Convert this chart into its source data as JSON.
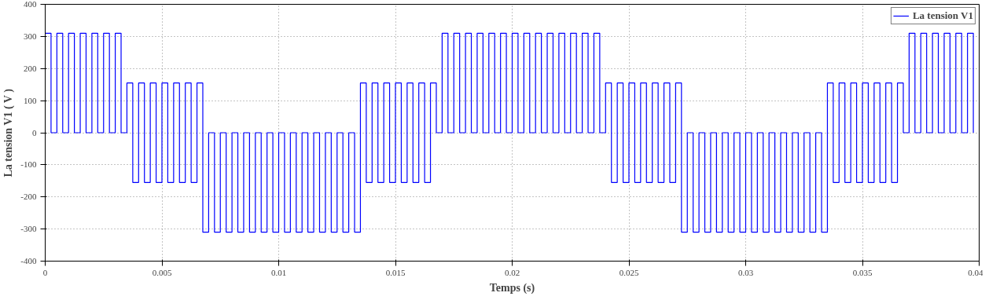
{
  "chart_data": {
    "type": "step",
    "xlabel": "Temps (s)",
    "ylabel": "La tension V1 ( V )",
    "x": [
      0,
      0.00025,
      0.0005,
      0.00075,
      0.001,
      0.00125,
      0.0015,
      0.00175,
      0.002,
      0.00225,
      0.0025,
      0.00275,
      0.003,
      0.00325,
      0.0035,
      0.00375,
      0.004,
      0.00425,
      0.0045,
      0.00475,
      0.005,
      0.00525,
      0.0055,
      0.00575,
      0.006,
      0.00625,
      0.0065,
      0.00675,
      0.007,
      0.00725,
      0.0075,
      0.00775,
      0.008,
      0.00825,
      0.0085,
      0.00875,
      0.009,
      0.00925,
      0.0095,
      0.00975,
      0.01,
      0.01025,
      0.0105,
      0.01075,
      0.011,
      0.01125,
      0.0115,
      0.01175,
      0.012,
      0.01225,
      0.0125,
      0.01275,
      0.013,
      0.01325,
      0.0135,
      0.01375,
      0.014,
      0.01425,
      0.0145,
      0.01475,
      0.015,
      0.01525,
      0.0155,
      0.01575,
      0.016,
      0.01625,
      0.0165,
      0.01675,
      0.017,
      0.01725,
      0.0175,
      0.01775,
      0.018,
      0.01825,
      0.0185,
      0.01875,
      0.019,
      0.01925,
      0.0195,
      0.01975,
      0.02,
      0.02025,
      0.0205,
      0.02075,
      0.021,
      0.02125,
      0.0215,
      0.02175,
      0.022,
      0.02225,
      0.0225,
      0.02275,
      0.023,
      0.02325,
      0.0235,
      0.02375,
      0.024,
      0.02425,
      0.0245,
      0.02475,
      0.025,
      0.02525,
      0.0255,
      0.02575,
      0.026,
      0.02625,
      0.0265,
      0.02675,
      0.027,
      0.02725,
      0.0275,
      0.02775,
      0.028,
      0.02825,
      0.0285,
      0.02875,
      0.029,
      0.02925,
      0.0295,
      0.02975,
      0.03,
      0.03025,
      0.0305,
      0.03075,
      0.031,
      0.03125,
      0.0315,
      0.03175,
      0.032,
      0.03225,
      0.0325,
      0.03275,
      0.033,
      0.03325,
      0.0335,
      0.03375,
      0.034,
      0.03425,
      0.0345,
      0.03475,
      0.035,
      0.03525,
      0.0355,
      0.03575,
      0.036,
      0.03625,
      0.0365,
      0.03675,
      0.037,
      0.03725,
      0.0375,
      0.03775,
      0.038,
      0.03825,
      0.0385,
      0.03875,
      0.039,
      0.03925,
      0.0395,
      0.03975
    ],
    "series": [
      {
        "name": "La tension V1",
        "color": "#0000ff",
        "values": [
          310,
          0,
          310,
          0,
          310,
          0,
          310,
          0,
          310,
          0,
          310,
          0,
          310,
          0,
          155,
          -155,
          155,
          -155,
          155,
          -155,
          155,
          -155,
          155,
          -155,
          155,
          -155,
          155,
          -310,
          0,
          -310,
          0,
          -310,
          0,
          -310,
          0,
          -310,
          0,
          -310,
          0,
          -310,
          0,
          -310,
          0,
          -310,
          0,
          -310,
          0,
          -310,
          0,
          -310,
          0,
          -310,
          0,
          -310,
          155,
          -155,
          155,
          -155,
          155,
          -155,
          155,
          -155,
          155,
          -155,
          155,
          -155,
          155,
          0,
          310,
          0,
          310,
          0,
          310,
          0,
          310,
          0,
          310,
          0,
          310,
          0,
          310,
          0,
          310,
          0,
          310,
          0,
          310,
          0,
          310,
          0,
          310,
          0,
          310,
          0,
          310,
          0,
          155,
          -155,
          155,
          -155,
          155,
          -155,
          155,
          -155,
          155,
          -155,
          155,
          -155,
          155,
          -310,
          0,
          -310,
          0,
          -310,
          0,
          -310,
          0,
          -310,
          0,
          -310,
          0,
          -310,
          0,
          -310,
          0,
          -310,
          0,
          -310,
          0,
          -310,
          0,
          -310,
          0,
          -310,
          155,
          -155,
          155,
          -155,
          155,
          -155,
          155,
          -155,
          155,
          -155,
          155,
          -155,
          155,
          0,
          310,
          0,
          310,
          0,
          310,
          0,
          310,
          0,
          310,
          0,
          310,
          0
        ]
      }
    ],
    "xlim": [
      0,
      0.04
    ],
    "xticks": [
      0,
      0.005,
      0.01,
      0.015,
      0.02,
      0.025,
      0.03,
      0.035,
      0.04
    ],
    "ylim": [
      -400,
      400
    ],
    "yticks": [
      -400,
      -300,
      -200,
      -100,
      0,
      100,
      200,
      300,
      400
    ],
    "grid": true,
    "legend": "top right",
    "line_style": "solid",
    "marker": "none"
  }
}
